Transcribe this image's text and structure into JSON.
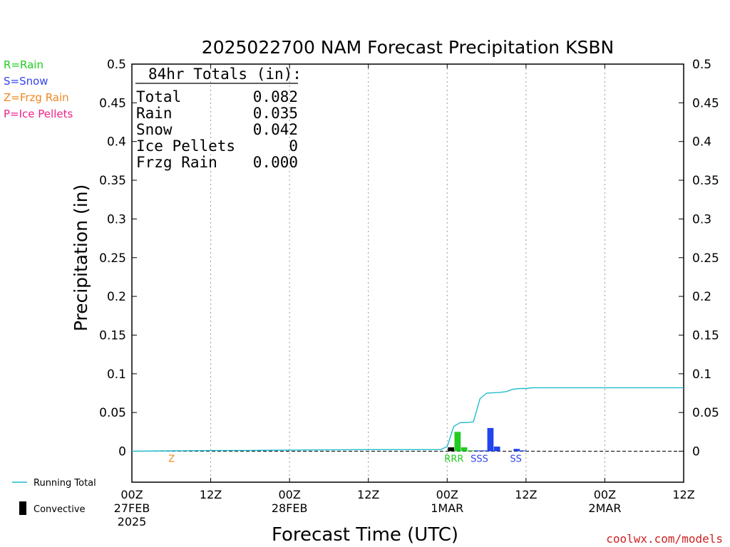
{
  "chart_data": {
    "type": "bar",
    "title": "2025022700 NAM Forecast Precipitation KSBN",
    "xlabel": "Forecast Time (UTC)",
    "ylabel": "Precipitation (in)",
    "ylim": [
      -0.04,
      0.5
    ],
    "xlim_hours": [
      0,
      84
    ],
    "grid": "vertical dotted lines at each x tick",
    "y_ticks": [
      0,
      0.05,
      0.1,
      0.15,
      0.2,
      0.25,
      0.3,
      0.35,
      0.4,
      0.45,
      0.5
    ],
    "y_tick_labels": [
      "0",
      "0.05",
      "0.1",
      "0.15",
      "0.2",
      "0.25",
      "0.3",
      "0.35",
      "0.4",
      "0.45",
      "0.5"
    ],
    "x_ticks": [
      {
        "hour": 0,
        "line1": "00Z",
        "line2": "27FEB",
        "line3": "2025"
      },
      {
        "hour": 12,
        "line1": "12Z",
        "line2": "",
        "line3": ""
      },
      {
        "hour": 24,
        "line1": "00Z",
        "line2": "28FEB",
        "line3": ""
      },
      {
        "hour": 36,
        "line1": "12Z",
        "line2": "",
        "line3": ""
      },
      {
        "hour": 48,
        "line1": "00Z",
        "line2": "1MAR",
        "line3": ""
      },
      {
        "hour": 60,
        "line1": "12Z",
        "line2": "",
        "line3": ""
      },
      {
        "hour": 72,
        "line1": "00Z",
        "line2": "2MAR",
        "line3": ""
      },
      {
        "hour": 84,
        "line1": "12Z",
        "line2": "",
        "line3": ""
      }
    ],
    "precip_type_legend": [
      {
        "label": "R=Rain",
        "color": "#22cc22"
      },
      {
        "label": "S=Snow",
        "color": "#3344ee"
      },
      {
        "label": "Z=Frzg Rain",
        "color": "#ee8822"
      },
      {
        "label": "P=Ice Pellets",
        "color": "#ee2288"
      }
    ],
    "series_legend": {
      "running_total_label": "Running Total",
      "running_total_color": "#22bbcc",
      "convective_label": "Convective",
      "convective_color": "#000000"
    },
    "totals_box": {
      "header": "84hr Totals (in):",
      "rows": [
        {
          "label": "Total",
          "value": "0.082"
        },
        {
          "label": "Rain",
          "value": "0.035"
        },
        {
          "label": "Snow",
          "value": "0.042"
        },
        {
          "label": "Ice Pellets",
          "value": "0"
        },
        {
          "label": "Frzg Rain",
          "value": "0.000"
        }
      ]
    },
    "bars": [
      {
        "hour": 0,
        "value": 0.0,
        "type": "Z"
      },
      {
        "hour": 48,
        "value": 0.005,
        "type": "C"
      },
      {
        "hour": 49,
        "value": 0.025,
        "type": "R"
      },
      {
        "hour": 50,
        "value": 0.005,
        "type": "R"
      },
      {
        "hour": 51,
        "value": 0.001,
        "type": "R"
      },
      {
        "hour": 52,
        "value": 0.001,
        "type": "S"
      },
      {
        "hour": 53,
        "value": 0.001,
        "type": "S"
      },
      {
        "hour": 54,
        "value": 0.03,
        "type": "S"
      },
      {
        "hour": 55,
        "value": 0.006,
        "type": "S"
      },
      {
        "hour": 58,
        "value": 0.003,
        "type": "S"
      },
      {
        "hour": 59,
        "value": 0.001,
        "type": "S"
      }
    ],
    "type_markers": [
      {
        "hour": 6,
        "text": "Z",
        "color": "#ee8822"
      },
      {
        "hour": 48,
        "text": "RRR",
        "color": "#22cc22"
      },
      {
        "hour": 52,
        "text": "SSS",
        "color": "#3344ee"
      },
      {
        "hour": 58,
        "text": "SS",
        "color": "#3344ee"
      }
    ],
    "running_total": {
      "x": [
        0,
        6,
        12,
        18,
        24,
        30,
        36,
        42,
        47,
        48,
        49,
        50,
        51,
        52,
        53,
        54,
        55,
        56,
        57,
        58,
        59,
        60,
        61,
        62,
        66,
        72,
        78,
        84
      ],
      "y": [
        0,
        0.0005,
        0.0008,
        0.001,
        0.0015,
        0.0018,
        0.002,
        0.002,
        0.002,
        0.006,
        0.032,
        0.037,
        0.037,
        0.038,
        0.068,
        0.075,
        0.0755,
        0.076,
        0.077,
        0.08,
        0.081,
        0.081,
        0.082,
        0.082,
        0.082,
        0.082,
        0.082,
        0.082
      ]
    }
  },
  "footer": {
    "credit": "coolwx.com/models"
  }
}
